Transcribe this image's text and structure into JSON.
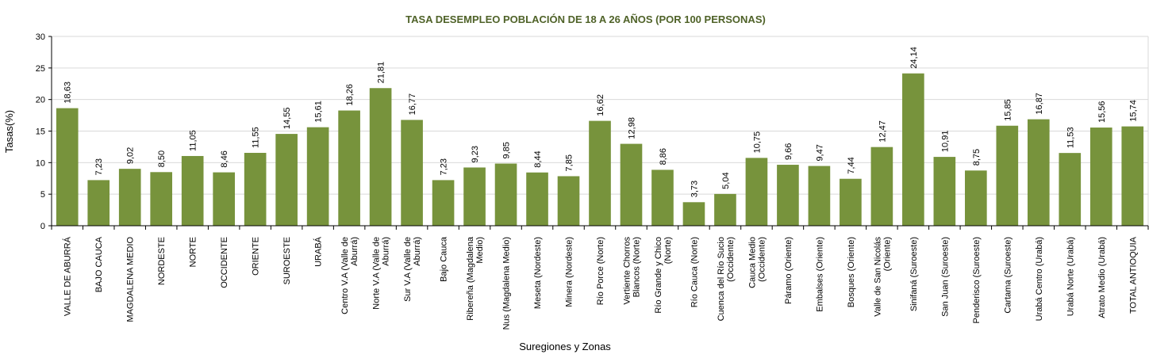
{
  "chart_data": {
    "type": "bar",
    "title": "TASA DESEMPLEO POBLACIÓN DE 18 A 26 AÑOS (POR 100 PERSONAS)",
    "xlabel": "Suregiones y Zonas",
    "ylabel": "Tasas(%)",
    "ylim": [
      0,
      30
    ],
    "yticks": [
      0,
      5,
      10,
      15,
      20,
      25,
      30
    ],
    "grid": true,
    "legend": "none",
    "bar_color": "#77933c",
    "title_color": "#4f6228",
    "categories": [
      [
        "VALLE DE ABURRÁ"
      ],
      [
        "BAJO CAUCA"
      ],
      [
        "MAGDALENA MEDIO"
      ],
      [
        "NORDESTE"
      ],
      [
        "NORTE"
      ],
      [
        "OCCIDENTE"
      ],
      [
        "ORIENTE"
      ],
      [
        "SUROESTE"
      ],
      [
        "URABÁ"
      ],
      [
        "Centro V.A (Valle de",
        "Aburrá)"
      ],
      [
        "Norte V.A (Valle de",
        "Aburrá)"
      ],
      [
        "Sur V.A (Valle de",
        "Aburrá)"
      ],
      [
        "Bajo Cauca"
      ],
      [
        "Ribereña (Magdalena",
        "Medio)"
      ],
      [
        "Nus (Magdalena Medio)"
      ],
      [
        "Meseta (Nordeste)"
      ],
      [
        "Minera (Nordeste)"
      ],
      [
        "Río Porce (Norte)"
      ],
      [
        "Vertiente Chorros",
        "Blancos (Norte)"
      ],
      [
        "Río Grande y Chico",
        "(Norte)"
      ],
      [
        "Río Cauca (Norte)"
      ],
      [
        "Cuenca del Río Sucio",
        "(Occidente)"
      ],
      [
        "Cauca Medio",
        "(Occidente)"
      ],
      [
        "Páramo (Oriente)"
      ],
      [
        "Embalses (Oriente)"
      ],
      [
        "Bosques (Oriente)"
      ],
      [
        "Valle de San Nicolás",
        "(Oriente)"
      ],
      [
        "Sinifaná (Suroeste)"
      ],
      [
        "San Juan (Suroeste)"
      ],
      [
        "Penderisco (Suroeste)"
      ],
      [
        "Cartama (Suroeste)"
      ],
      [
        "Urabá Centro (Urabá)"
      ],
      [
        "Urabá Norte (Urabá)"
      ],
      [
        "Atrato Medio (Urabá)"
      ],
      [
        "TOTAL ANTIOQUIA"
      ]
    ],
    "values": [
      18.63,
      7.23,
      9.02,
      8.5,
      11.05,
      8.46,
      11.55,
      14.55,
      15.61,
      18.26,
      21.81,
      16.77,
      7.23,
      9.23,
      9.85,
      8.44,
      7.85,
      16.62,
      12.98,
      8.86,
      3.73,
      5.04,
      10.75,
      9.66,
      9.47,
      7.44,
      12.47,
      24.14,
      10.91,
      8.75,
      15.85,
      16.87,
      11.53,
      15.56,
      15.74
    ],
    "value_labels": [
      "18,63",
      "7,23",
      "9,02",
      "8,50",
      "11,05",
      "8,46",
      "11,55",
      "14,55",
      "15,61",
      "18,26",
      "21,81",
      "16,77",
      "7,23",
      "9,23",
      "9,85",
      "8,44",
      "7,85",
      "16,62",
      "12,98",
      "8,86",
      "3,73",
      "5,04",
      "10,75",
      "9,66",
      "9,47",
      "7,44",
      "12,47",
      "24,14",
      "10,91",
      "8,75",
      "15,85",
      "16,87",
      "11,53",
      "15,56",
      "15,74"
    ]
  }
}
